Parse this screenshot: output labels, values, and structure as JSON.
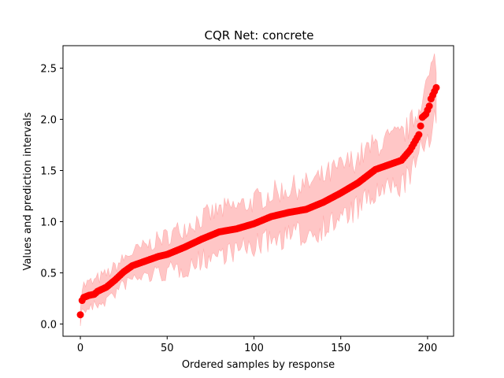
{
  "chart_data": {
    "type": "scatter",
    "title": "CQR Net: concrete",
    "xlabel": "Ordered samples by response",
    "ylabel": "Values and prediction intervals",
    "xlim": [
      -10,
      215
    ],
    "ylim": [
      -0.12,
      2.72
    ],
    "xticks": [
      0,
      50,
      100,
      150,
      200
    ],
    "yticks": [
      0.0,
      0.5,
      1.0,
      1.5,
      2.0,
      2.5
    ],
    "xtick_labels": [
      "0",
      "50",
      "100",
      "150",
      "200"
    ],
    "ytick_labels": [
      "0.0",
      "0.5",
      "1.0",
      "1.5",
      "2.0",
      "2.5"
    ],
    "grid": false,
    "legend": "none",
    "colors": {
      "points": "#ff0000",
      "band": "#ff8080"
    },
    "n_points": 206,
    "y_anchors": [
      [
        0,
        0.09
      ],
      [
        1,
        0.23
      ],
      [
        2,
        0.26
      ],
      [
        5,
        0.28
      ],
      [
        8,
        0.29
      ],
      [
        10,
        0.32
      ],
      [
        15,
        0.36
      ],
      [
        20,
        0.43
      ],
      [
        25,
        0.51
      ],
      [
        30,
        0.57
      ],
      [
        40,
        0.63
      ],
      [
        45,
        0.66
      ],
      [
        50,
        0.68
      ],
      [
        60,
        0.75
      ],
      [
        70,
        0.83
      ],
      [
        80,
        0.9
      ],
      [
        90,
        0.93
      ],
      [
        100,
        0.98
      ],
      [
        110,
        1.05
      ],
      [
        120,
        1.09
      ],
      [
        130,
        1.12
      ],
      [
        140,
        1.19
      ],
      [
        150,
        1.28
      ],
      [
        160,
        1.38
      ],
      [
        170,
        1.51
      ],
      [
        180,
        1.57
      ],
      [
        185,
        1.6
      ],
      [
        190,
        1.7
      ],
      [
        195,
        1.85
      ],
      [
        197,
        2.02
      ],
      [
        199,
        2.05
      ],
      [
        201,
        2.13
      ],
      [
        202,
        2.2
      ],
      [
        205,
        2.31
      ]
    ],
    "band_half_width_anchors": [
      [
        0,
        0.12
      ],
      [
        30,
        0.13
      ],
      [
        60,
        0.2
      ],
      [
        100,
        0.22
      ],
      [
        150,
        0.25
      ],
      [
        190,
        0.24
      ],
      [
        205,
        0.28
      ]
    ]
  }
}
